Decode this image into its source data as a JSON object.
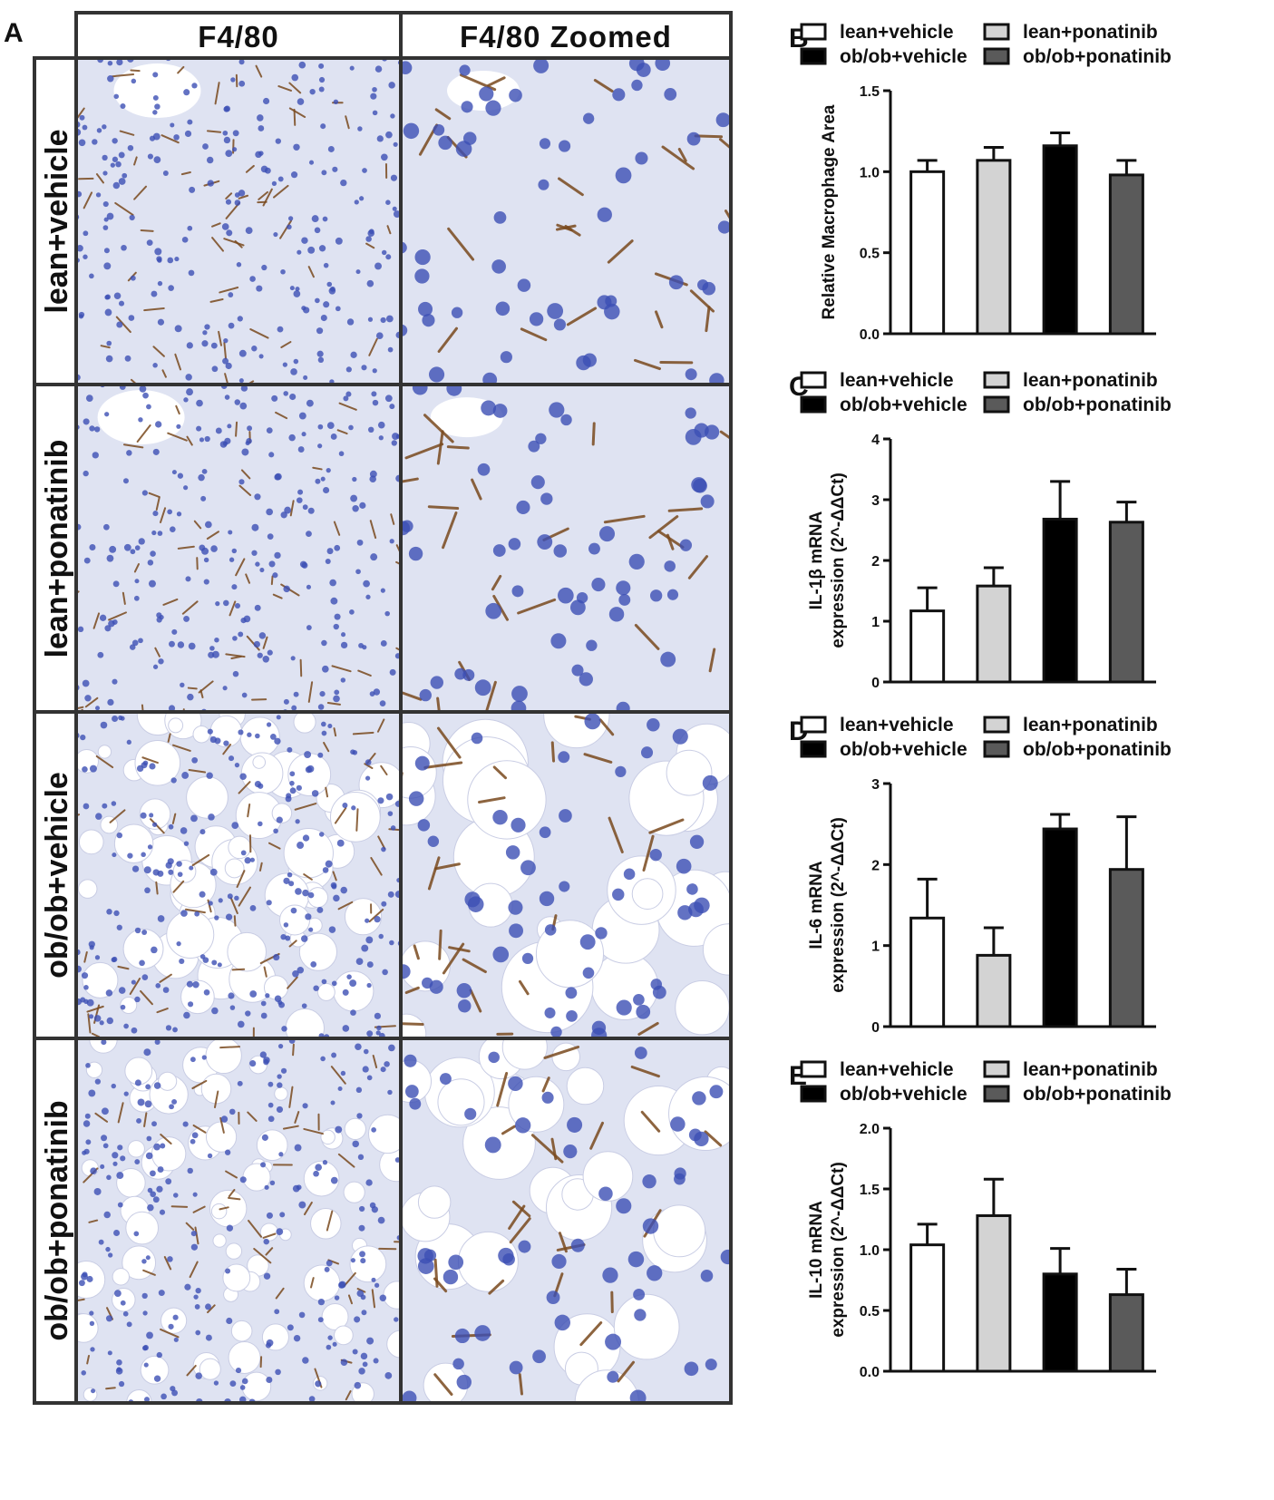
{
  "panel_a": {
    "letter": "A",
    "columns": [
      "F4/80",
      "F4/80 Zoomed"
    ],
    "rows": [
      "lean+vehicle",
      "lean+ponatinib",
      "ob/ob+vehicle",
      "ob/ob+ponatinib"
    ]
  },
  "colors": {
    "lean+vehicle": "#ffffff",
    "lean+ponatinib": "#d3d3d3",
    "ob/ob+vehicle": "#000000",
    "ob/ob+ponatinib": "#5a5a5a",
    "tissue_background": "#dfe3f2",
    "nucleus": "#3c4fb4",
    "stain": "#7a4a1e"
  },
  "chart_data": [
    {
      "letter": "B",
      "type": "bar",
      "legend": [
        "lean+vehicle",
        "lean+ponatinib",
        "ob/ob+vehicle",
        "ob/ob+ponatinib"
      ],
      "categories": [
        "lean+vehicle",
        "lean+ponatinib",
        "ob/ob+vehicle",
        "ob/ob+ponatinib"
      ],
      "values": [
        1.0,
        1.07,
        1.16,
        0.98
      ],
      "errors": [
        0.07,
        0.08,
        0.08,
        0.09
      ],
      "ylabel_lines": [
        "Relative Macrophage Area"
      ],
      "ylim": [
        0,
        1.5
      ],
      "yticks": [
        "0.0",
        "0.5",
        "1.0",
        "1.5"
      ],
      "grid": false
    },
    {
      "letter": "C",
      "type": "bar",
      "legend": [
        "lean+vehicle",
        "lean+ponatinib",
        "ob/ob+vehicle",
        "ob/ob+ponatinib"
      ],
      "categories": [
        "lean+vehicle",
        "lean+ponatinib",
        "ob/ob+vehicle",
        "ob/ob+ponatinib"
      ],
      "values": [
        1.17,
        1.58,
        2.68,
        2.63
      ],
      "errors": [
        0.38,
        0.3,
        0.62,
        0.33
      ],
      "ylabel_lines": [
        "IL-1β mRNA",
        "expression (2^-ΔΔCt)"
      ],
      "ylim": [
        0,
        4
      ],
      "yticks": [
        "0",
        "1",
        "2",
        "3",
        "4"
      ],
      "grid": false
    },
    {
      "letter": "D",
      "type": "bar",
      "legend": [
        "lean+vehicle",
        "lean+ponatinib",
        "ob/ob+vehicle",
        "ob/ob+ponatinib"
      ],
      "categories": [
        "lean+vehicle",
        "lean+ponatinib",
        "ob/ob+vehicle",
        "ob/ob+ponatinib"
      ],
      "values": [
        1.34,
        0.88,
        2.44,
        1.94
      ],
      "errors": [
        0.48,
        0.34,
        0.18,
        0.65
      ],
      "ylabel_lines": [
        "IL-6  mRNA",
        "expression (2^-ΔΔCt)"
      ],
      "ylim": [
        0,
        3
      ],
      "yticks": [
        "0",
        "1",
        "2",
        "3"
      ],
      "grid": false
    },
    {
      "letter": "E",
      "type": "bar",
      "legend": [
        "lean+vehicle",
        "lean+ponatinib",
        "ob/ob+vehicle",
        "ob/ob+ponatinib"
      ],
      "categories": [
        "lean+vehicle",
        "lean+ponatinib",
        "ob/ob+vehicle",
        "ob/ob+ponatinib"
      ],
      "values": [
        1.04,
        1.28,
        0.8,
        0.63
      ],
      "errors": [
        0.17,
        0.3,
        0.21,
        0.21
      ],
      "ylabel_lines": [
        "IL-10 mRNA",
        "expression (2^-ΔΔCt)"
      ],
      "ylim": [
        0,
        2.0
      ],
      "yticks": [
        "0.0",
        "0.5",
        "1.0",
        "1.5",
        "2.0"
      ],
      "grid": false
    }
  ]
}
